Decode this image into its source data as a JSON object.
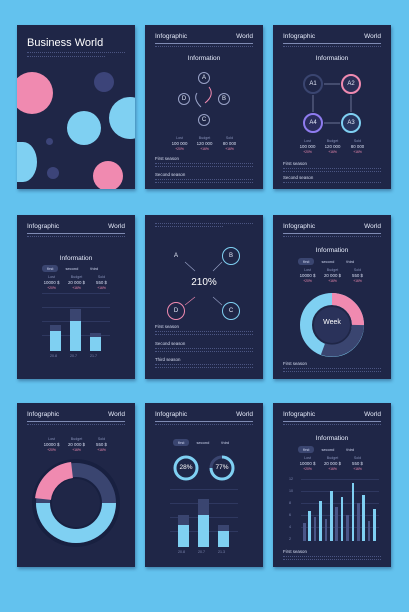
{
  "colors": {
    "bg": "#63c2ee",
    "card": "#1f2647",
    "pink": "#f08ab0",
    "sky": "#7fd0f2",
    "navy": "#3a4570"
  },
  "cover": {
    "title": "Business World"
  },
  "header": {
    "left": "Infographic",
    "right": "World"
  },
  "info_title": "Information",
  "nodes_abcd": [
    "A",
    "B",
    "C",
    "D"
  ],
  "nodes_a": [
    "A1",
    "A2",
    "A4",
    "A3"
  ],
  "stats": {
    "labels": [
      "Lost",
      "Budget",
      "Sold"
    ],
    "values": [
      "100 000",
      "120 000",
      "80 000"
    ],
    "pct": [
      "+20%",
      "+16%",
      "+16%"
    ]
  },
  "stats_s": {
    "labels": [
      "Lost",
      "Budget",
      "Sold"
    ],
    "values": [
      "10000 $",
      "20 000 $",
      "550 $"
    ],
    "pct": [
      "+20%",
      "+16%",
      "+16%"
    ]
  },
  "stats_s2": {
    "labels": [
      "Lost",
      "Budget",
      "Sold"
    ],
    "values": [
      "10000 $",
      "20 000 $",
      "550 $"
    ],
    "pct": [
      "+20%",
      "+16%",
      "+16%"
    ]
  },
  "stats_s4": {
    "labels": [
      "Lost",
      "Budget",
      "Sold"
    ],
    "values": [
      "10000 $",
      "20 000 $",
      "550 $"
    ],
    "pct": [
      "+20%",
      "+16%",
      "+16%"
    ]
  },
  "tabs": [
    "first",
    "second",
    "third"
  ],
  "sections": {
    "first": "First season",
    "second": "Second season",
    "third": "Third season"
  },
  "pct_center": "210%",
  "week": "Week",
  "donuts": [
    "28%",
    "77%"
  ],
  "bar_x": [
    "20.8",
    "20.7",
    "21.7"
  ],
  "bar_x2": [
    "20.8",
    "20.7",
    "21.3"
  ],
  "axis_y": [
    "12",
    "10",
    "8",
    "6",
    "4",
    "2"
  ]
}
